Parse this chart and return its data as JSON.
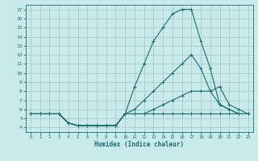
{
  "title": "",
  "xlabel": "Humidex (Indice chaleur)",
  "background_color": "#c8eaea",
  "grid_color": "#aacaca",
  "line_color": "#1a6e6e",
  "xlim": [
    -0.5,
    23.5
  ],
  "ylim": [
    3.5,
    17.5
  ],
  "xticks": [
    0,
    1,
    2,
    3,
    4,
    5,
    6,
    7,
    8,
    9,
    10,
    11,
    12,
    13,
    14,
    15,
    16,
    17,
    18,
    19,
    20,
    21,
    22,
    23
  ],
  "yticks": [
    4,
    5,
    6,
    7,
    8,
    9,
    10,
    11,
    12,
    13,
    14,
    15,
    16,
    17
  ],
  "lines": [
    {
      "x": [
        0,
        1,
        2,
        3,
        4,
        5,
        6,
        7,
        8,
        9,
        10,
        11,
        12,
        13,
        14,
        15,
        16,
        17,
        18,
        19,
        20,
        21,
        22,
        23
      ],
      "y": [
        5.5,
        5.5,
        5.5,
        5.5,
        4.5,
        4.2,
        4.2,
        4.2,
        4.2,
        4.2,
        5.5,
        8.5,
        11,
        13.5,
        15,
        16.5,
        17,
        17,
        13.5,
        10.5,
        6.5,
        6,
        5.5,
        5.5
      ]
    },
    {
      "x": [
        0,
        1,
        2,
        3,
        4,
        5,
        6,
        7,
        8,
        9,
        10,
        11,
        12,
        13,
        14,
        15,
        16,
        17,
        18,
        19,
        20,
        21,
        22,
        23
      ],
      "y": [
        5.5,
        5.5,
        5.5,
        5.5,
        4.5,
        4.2,
        4.2,
        4.2,
        4.2,
        4.2,
        5.5,
        6,
        7,
        8,
        9,
        10,
        11,
        12,
        10.5,
        8,
        6.5,
        6,
        5.5,
        5.5
      ]
    },
    {
      "x": [
        0,
        1,
        2,
        3,
        4,
        5,
        6,
        7,
        8,
        9,
        10,
        11,
        12,
        13,
        14,
        15,
        16,
        17,
        18,
        19,
        20,
        21,
        22,
        23
      ],
      "y": [
        5.5,
        5.5,
        5.5,
        5.5,
        4.5,
        4.2,
        4.2,
        4.2,
        4.2,
        4.2,
        5.5,
        5.5,
        5.5,
        5.5,
        5.5,
        5.5,
        5.5,
        5.5,
        5.5,
        5.5,
        5.5,
        5.5,
        5.5,
        5.5
      ]
    },
    {
      "x": [
        0,
        1,
        2,
        3,
        4,
        5,
        6,
        7,
        8,
        9,
        10,
        11,
        12,
        13,
        14,
        15,
        16,
        17,
        18,
        19,
        20,
        21,
        22,
        23
      ],
      "y": [
        5.5,
        5.5,
        5.5,
        5.5,
        4.5,
        4.2,
        4.2,
        4.2,
        4.2,
        4.2,
        5.5,
        5.5,
        5.5,
        6,
        6.5,
        7,
        7.5,
        8,
        8,
        8,
        8.5,
        6.5,
        6,
        5.5
      ]
    }
  ]
}
